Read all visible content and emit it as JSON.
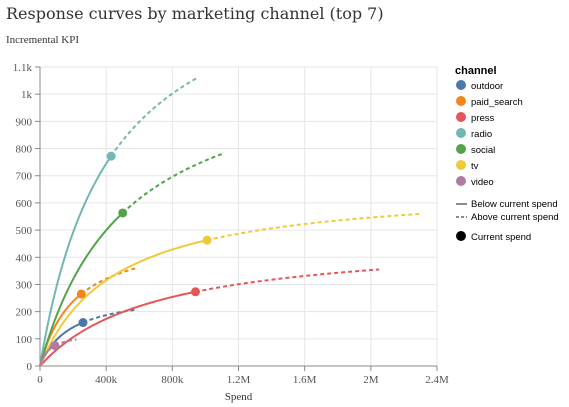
{
  "title": "Response curves by marketing channel (top 7)",
  "subtitle": "Incremental KPI",
  "chart_data": {
    "type": "line",
    "xlabel": "Spend",
    "ylabel": "",
    "xlim": [
      0,
      2400000
    ],
    "ylim": [
      0,
      1100
    ],
    "x_ticks": [
      0,
      400000,
      800000,
      1200000,
      1600000,
      2000000,
      2400000
    ],
    "x_tick_labels": [
      "0",
      "400k",
      "800k",
      "1.2M",
      "1.6M",
      "2M",
      "2.4M"
    ],
    "y_ticks": [
      0,
      100,
      200,
      300,
      400,
      500,
      600,
      700,
      800,
      900,
      1000,
      1100
    ],
    "y_tick_labels": [
      "0",
      "100",
      "200",
      "300",
      "400",
      "500",
      "600",
      "700",
      "800",
      "900",
      "1k",
      "1.1k"
    ],
    "grid": true,
    "legend": {
      "title": "channel",
      "placement": "right",
      "line_styles": [
        "Below current spend",
        "Above current spend"
      ],
      "marker_label": "Current spend"
    },
    "series": [
      {
        "name": "outdoor",
        "color": "#4c78a8",
        "current": [
          260000,
          160
        ],
        "end": [
          590000,
          208
        ]
      },
      {
        "name": "paid_search",
        "color": "#f58518",
        "current": [
          250000,
          265
        ],
        "end": [
          580000,
          360
        ]
      },
      {
        "name": "press",
        "color": "#e45756",
        "current": [
          940000,
          273
        ],
        "end": [
          2050000,
          355
        ]
      },
      {
        "name": "radio",
        "color": "#72b7b2",
        "current": [
          430000,
          772
        ],
        "end": [
          950000,
          1060
        ]
      },
      {
        "name": "social",
        "color": "#54a24b",
        "current": [
          500000,
          563
        ],
        "end": [
          1100000,
          780
        ]
      },
      {
        "name": "tv",
        "color": "#eeca3b",
        "current": [
          1010000,
          463
        ],
        "end": [
          2310000,
          560
        ]
      },
      {
        "name": "video",
        "color": "#b279a2",
        "current": [
          90000,
          75
        ],
        "end": [
          220000,
          98
        ]
      }
    ]
  }
}
